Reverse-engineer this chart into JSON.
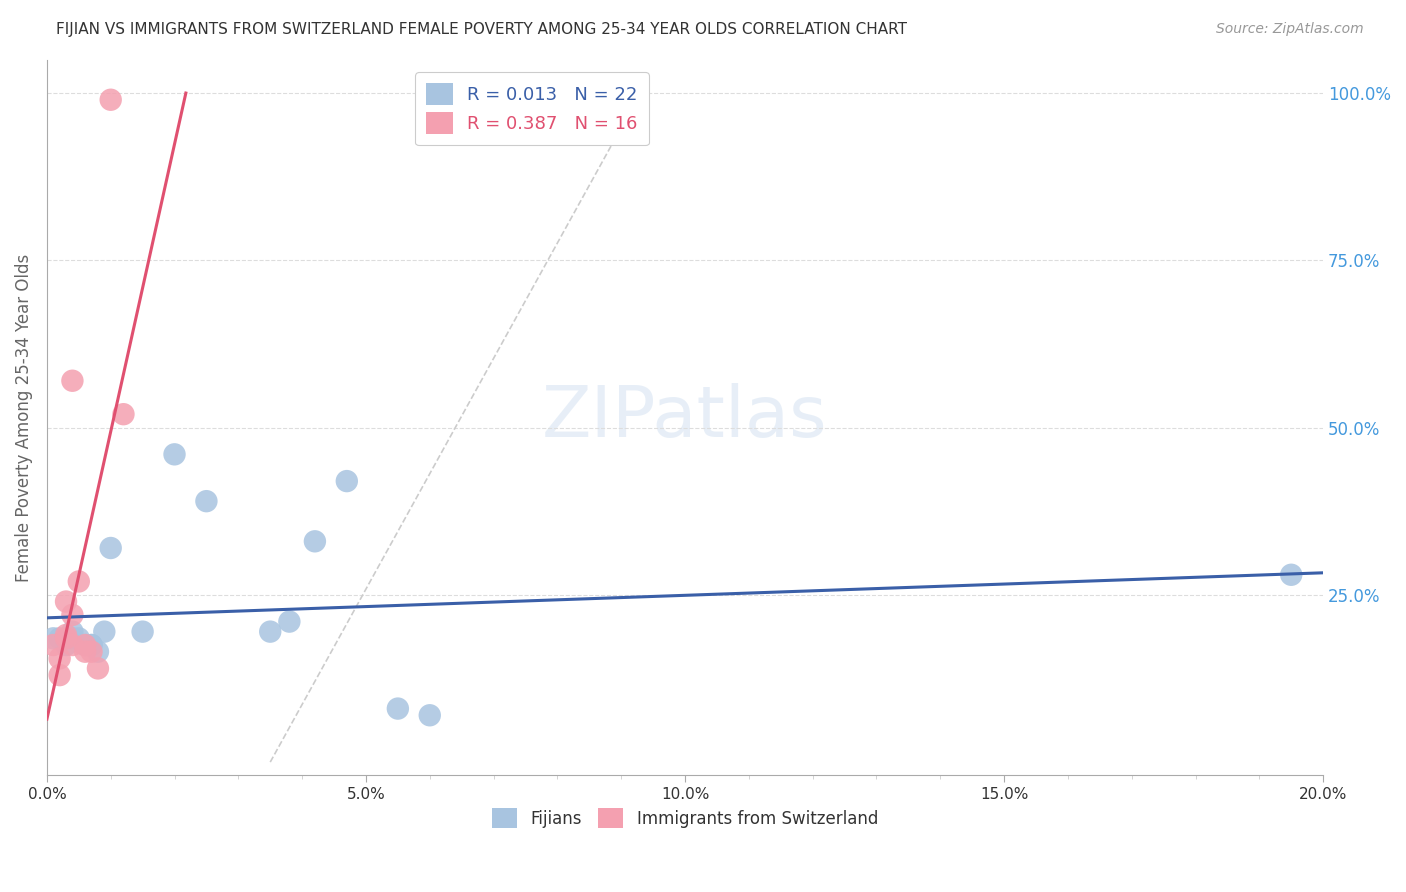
{
  "title": "FIJIAN VS IMMIGRANTS FROM SWITZERLAND FEMALE POVERTY AMONG 25-34 YEAR OLDS CORRELATION CHART",
  "source": "Source: ZipAtlas.com",
  "ylabel": "Female Poverty Among 25-34 Year Olds",
  "xlim": [
    0.0,
    0.2
  ],
  "ylim": [
    -0.02,
    1.05
  ],
  "xtick_labels": [
    "0.0%",
    "",
    "",
    "",
    "",
    "5.0%",
    "",
    "",
    "",
    "",
    "10.0%",
    "",
    "",
    "",
    "",
    "15.0%",
    "",
    "",
    "",
    "",
    "20.0%"
  ],
  "xtick_vals": [
    0.0,
    0.01,
    0.02,
    0.03,
    0.04,
    0.05,
    0.06,
    0.07,
    0.08,
    0.09,
    0.1,
    0.11,
    0.12,
    0.13,
    0.14,
    0.15,
    0.16,
    0.17,
    0.18,
    0.19,
    0.2
  ],
  "ytick_vals": [
    1.0,
    0.75,
    0.5,
    0.25
  ],
  "ytick_labels_right": [
    "100.0%",
    "75.0%",
    "50.0%",
    "25.0%"
  ],
  "fijian_x": [
    0.001,
    0.002,
    0.003,
    0.004,
    0.004,
    0.005,
    0.006,
    0.007,
    0.007,
    0.008,
    0.009,
    0.01,
    0.015,
    0.02,
    0.025,
    0.035,
    0.038,
    0.042,
    0.047,
    0.055,
    0.06,
    0.195
  ],
  "fijian_y": [
    0.185,
    0.185,
    0.175,
    0.185,
    0.195,
    0.185,
    0.175,
    0.175,
    0.175,
    0.165,
    0.195,
    0.32,
    0.195,
    0.46,
    0.39,
    0.195,
    0.21,
    0.33,
    0.42,
    0.08,
    0.07,
    0.28
  ],
  "swiss_x": [
    0.001,
    0.002,
    0.002,
    0.003,
    0.003,
    0.003,
    0.004,
    0.004,
    0.004,
    0.005,
    0.006,
    0.006,
    0.007,
    0.008,
    0.01,
    0.012
  ],
  "swiss_y": [
    0.175,
    0.155,
    0.13,
    0.185,
    0.19,
    0.24,
    0.175,
    0.57,
    0.22,
    0.27,
    0.165,
    0.175,
    0.165,
    0.14,
    0.99,
    0.52
  ],
  "fijian_color": "#a8c4e0",
  "swiss_color": "#f4a0b0",
  "fijian_line_color": "#3a5fa8",
  "swiss_line_color": "#e05070",
  "bg_color": "#ffffff",
  "grid_color": "#dddddd",
  "title_color": "#333333",
  "axis_label_color": "#666666",
  "right_tick_color": "#4499dd"
}
